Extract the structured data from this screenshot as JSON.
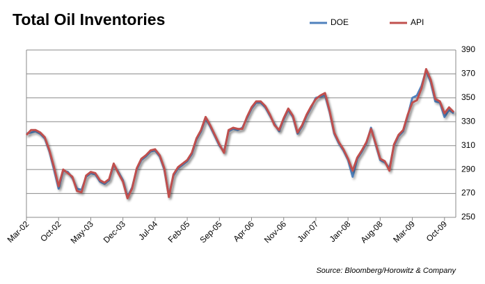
{
  "chart_data": {
    "type": "line",
    "title": "Total Oil Inventories",
    "source": "Source: Bloomberg/Horowitz & Company",
    "categories": [
      "Mar-02",
      null,
      null,
      null,
      null,
      null,
      null,
      "Oct-02",
      null,
      null,
      null,
      null,
      null,
      null,
      "May-03",
      null,
      null,
      null,
      null,
      null,
      null,
      "Dec-03",
      null,
      null,
      null,
      null,
      null,
      null,
      "Jul-04",
      null,
      null,
      null,
      null,
      null,
      null,
      "Feb-05",
      null,
      null,
      null,
      null,
      null,
      null,
      "Sep-05",
      null,
      null,
      null,
      null,
      null,
      null,
      "Apr-06",
      null,
      null,
      null,
      null,
      null,
      null,
      "Nov-06",
      null,
      null,
      null,
      null,
      null,
      null,
      "Jun-07",
      null,
      null,
      null,
      null,
      null,
      null,
      "Jan-08",
      null,
      null,
      null,
      null,
      null,
      null,
      "Aug-08",
      null,
      null,
      null,
      null,
      null,
      null,
      "Mar-09",
      null,
      null,
      null,
      null,
      null,
      null,
      "Oct-09",
      null,
      null
    ],
    "series": [
      {
        "name": "DOE",
        "color": "#4f81bd",
        "values": [
          320,
          321,
          322,
          320,
          316,
          305,
          290,
          274,
          289,
          288,
          283,
          274,
          273,
          284,
          287,
          286,
          280,
          278,
          281,
          294,
          288,
          281,
          267,
          275,
          290,
          298,
          301,
          305,
          306,
          301,
          290,
          268,
          285,
          291,
          294,
          297,
          303,
          315,
          322,
          333,
          326,
          318,
          310,
          305,
          322,
          324,
          323,
          325,
          333,
          341,
          346,
          346,
          342,
          335,
          328,
          322,
          332,
          340,
          334,
          320,
          326,
          335,
          342,
          350,
          351,
          352,
          338,
          320,
          312,
          306,
          298,
          284,
          299,
          305,
          312,
          325,
          311,
          298,
          296,
          291,
          310,
          318,
          322,
          335,
          350,
          352,
          360,
          373,
          363,
          347,
          346,
          334,
          340,
          337
        ]
      },
      {
        "name": "API",
        "color": "#c0504d",
        "values": [
          319,
          323,
          323,
          321,
          317,
          306,
          292,
          276,
          290,
          287,
          284,
          272,
          271,
          285,
          288,
          287,
          281,
          279,
          282,
          295,
          287,
          280,
          266,
          274,
          291,
          299,
          302,
          306,
          307,
          302,
          291,
          267,
          286,
          292,
          295,
          298,
          304,
          316,
          323,
          334,
          327,
          319,
          311,
          304,
          323,
          325,
          324,
          324,
          334,
          342,
          347,
          347,
          343,
          336,
          327,
          323,
          333,
          341,
          335,
          321,
          327,
          336,
          343,
          349,
          352,
          354,
          339,
          321,
          313,
          307,
          299,
          289,
          300,
          306,
          313,
          324,
          312,
          299,
          297,
          289,
          311,
          319,
          323,
          336,
          346,
          348,
          358,
          374,
          365,
          349,
          347,
          337,
          342,
          338
        ]
      }
    ],
    "ylim": [
      250,
      390
    ],
    "yticks": [
      250,
      270,
      290,
      310,
      330,
      350,
      370,
      390
    ],
    "grid": true,
    "legend": "top"
  }
}
